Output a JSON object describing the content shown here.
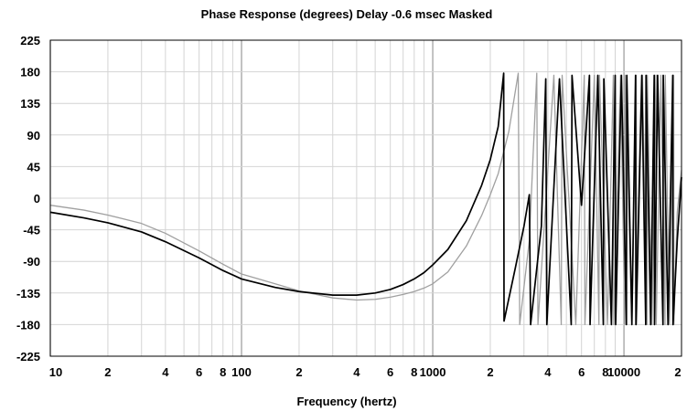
{
  "chart_data": {
    "type": "line",
    "title": "Phase Response (degrees)   Delay -0.6 msec   Masked",
    "xlabel": "Frequency (hertz)",
    "ylabel": "",
    "x_scale": "log",
    "xlim": [
      10,
      20000
    ],
    "ylim": [
      -225,
      225
    ],
    "grid": true,
    "y_ticks": [
      225,
      180,
      135,
      90,
      45,
      0,
      -45,
      -90,
      -135,
      -180,
      -225
    ],
    "x_ticks": [
      {
        "value": 10,
        "label": "10"
      },
      {
        "value": 20,
        "label": "2"
      },
      {
        "value": 40,
        "label": "4"
      },
      {
        "value": 60,
        "label": "6"
      },
      {
        "value": 80,
        "label": "8"
      },
      {
        "value": 100,
        "label": "100"
      },
      {
        "value": 200,
        "label": "2"
      },
      {
        "value": 400,
        "label": "4"
      },
      {
        "value": 600,
        "label": "6"
      },
      {
        "value": 800,
        "label": "8"
      },
      {
        "value": 1000,
        "label": "1000"
      },
      {
        "value": 2000,
        "label": "2"
      },
      {
        "value": 4000,
        "label": "4"
      },
      {
        "value": 6000,
        "label": "6"
      },
      {
        "value": 8000,
        "label": "8"
      },
      {
        "value": 10000,
        "label": "10000"
      },
      {
        "value": 20000,
        "label": "2"
      }
    ],
    "series": [
      {
        "color": "#000000",
        "x": [
          10,
          15,
          20,
          30,
          40,
          60,
          80,
          100,
          150,
          200,
          300,
          400,
          500,
          600,
          700,
          800,
          900,
          1000,
          1200,
          1500,
          1800,
          2000,
          2200,
          2350,
          2360,
          2700,
          3000,
          3200,
          3250,
          3700,
          3900,
          3950,
          4600,
          5300,
          5350,
          6000,
          6600,
          6650,
          7300,
          7800,
          7850,
          8600,
          9000,
          9050,
          9700,
          10300,
          10350,
          11000,
          11500,
          11550,
          12400,
          13000,
          13050,
          13800,
          14400,
          14450,
          15000,
          16000,
          16050,
          17000,
          18000,
          18050,
          19000,
          20000
        ],
        "y": [
          -20,
          -28,
          -35,
          -48,
          -62,
          -85,
          -103,
          -115,
          -127,
          -133,
          -138,
          -138,
          -135,
          -130,
          -123,
          -115,
          -106,
          -95,
          -73,
          -32,
          18,
          55,
          102,
          178,
          -175,
          -100,
          -40,
          5,
          -180,
          -40,
          170,
          -180,
          170,
          -180,
          175,
          -10,
          175,
          -180,
          175,
          -180,
          170,
          -180,
          175,
          -180,
          175,
          -180,
          175,
          -180,
          175,
          -180,
          175,
          -180,
          175,
          -180,
          175,
          -180,
          175,
          -180,
          175,
          -180,
          175,
          -180,
          -60,
          30
        ]
      },
      {
        "color": "#a0a0a0",
        "x": [
          10,
          15,
          20,
          30,
          40,
          60,
          80,
          100,
          150,
          200,
          300,
          400,
          500,
          600,
          700,
          800,
          900,
          1000,
          1200,
          1500,
          1800,
          2000,
          2200,
          2500,
          2800,
          2850,
          3200,
          3500,
          3550,
          4300,
          4700,
          4750,
          5600,
          6200,
          6250,
          7000,
          7400,
          7450,
          8200,
          8800,
          8850,
          9600,
          10100,
          10150,
          11000,
          11600,
          11650,
          12500,
          13200,
          13250,
          14000,
          14700,
          14750,
          15600,
          16400,
          16450,
          17300,
          18200,
          18250,
          19000,
          20000
        ],
        "y": [
          -10,
          -17,
          -24,
          -36,
          -50,
          -75,
          -94,
          -108,
          -122,
          -132,
          -142,
          -145,
          -144,
          -141,
          -137,
          -133,
          -128,
          -122,
          -105,
          -68,
          -25,
          5,
          35,
          95,
          178,
          -180,
          -60,
          178,
          -180,
          175,
          -180,
          175,
          -180,
          175,
          -180,
          175,
          -180,
          175,
          -180,
          175,
          -180,
          175,
          -180,
          175,
          -180,
          175,
          -180,
          175,
          -180,
          175,
          -180,
          175,
          -180,
          175,
          -180,
          175,
          -180,
          175,
          -180,
          -20,
          40
        ]
      }
    ]
  }
}
